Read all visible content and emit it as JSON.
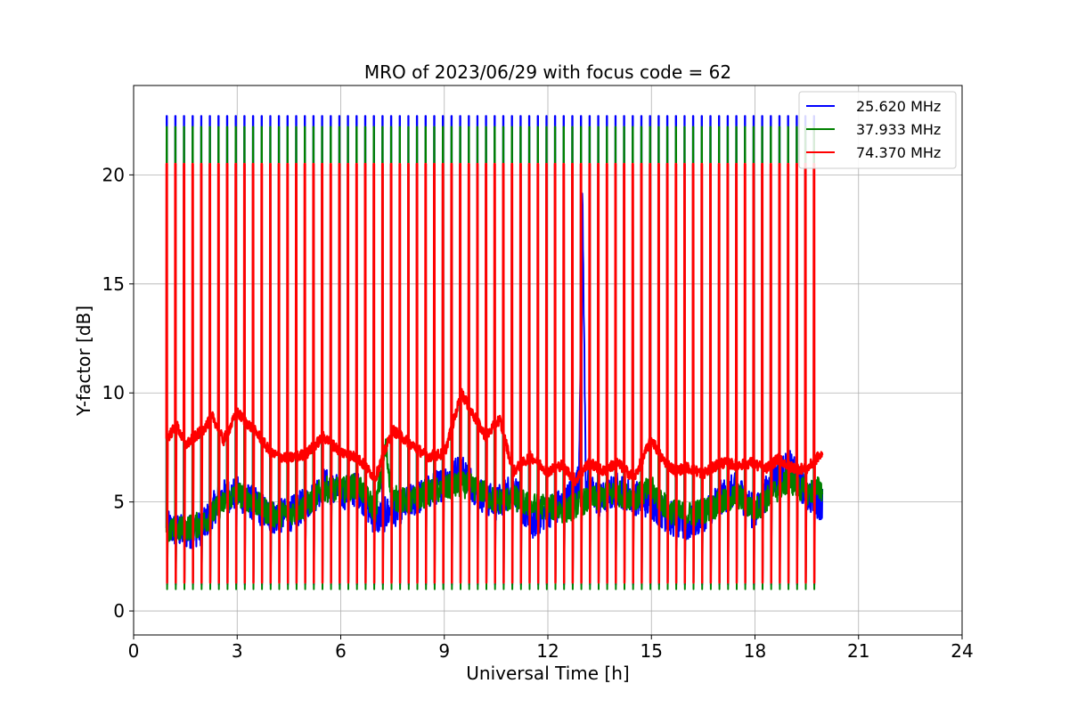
{
  "chart_data": {
    "type": "line",
    "title": "MRO of 2023/06/29 with focus code = 62",
    "xlabel": "Universal Time [h]",
    "ylabel": "Y-factor [dB]",
    "xlim": [
      0,
      24
    ],
    "ylim": [
      -1.1,
      24.1
    ],
    "xticks": [
      0,
      3,
      6,
      9,
      12,
      15,
      18,
      21,
      24
    ],
    "yticks": [
      0,
      5,
      10,
      15,
      20
    ],
    "grid": true,
    "legend_position": "top-right",
    "sweep": {
      "start_hour": 0.95,
      "end_hour": 19.85,
      "period_hours": 0.25
    },
    "series": [
      {
        "name": "25.620 MHz",
        "color": "#0000ff",
        "peak_level": 22.7,
        "low_level": 1.2,
        "baseline_x": [
          0.95,
          1.5,
          2.0,
          2.5,
          3.0,
          3.5,
          4.0,
          4.5,
          5.0,
          5.5,
          6.0,
          6.5,
          7.0,
          7.5,
          8.0,
          8.5,
          9.0,
          9.5,
          10.0,
          10.5,
          11.0,
          11.5,
          12.0,
          12.5,
          12.9,
          13.0,
          13.1,
          13.5,
          14.0,
          14.5,
          15.0,
          15.5,
          16.0,
          16.5,
          17.0,
          17.5,
          18.0,
          18.5,
          19.0,
          19.5,
          19.85
        ],
        "baseline_y": [
          3.8,
          3.6,
          3.8,
          5.2,
          5.4,
          4.9,
          4.3,
          4.4,
          4.9,
          5.8,
          5.4,
          5.6,
          4.2,
          4.6,
          5.0,
          5.4,
          5.9,
          6.5,
          5.4,
          4.9,
          5.7,
          4.0,
          4.6,
          4.9,
          6.0,
          19.0,
          6.0,
          5.0,
          5.6,
          5.2,
          5.0,
          4.3,
          3.9,
          4.4,
          5.2,
          5.6,
          4.4,
          6.0,
          6.6,
          5.4,
          5.0
        ]
      },
      {
        "name": "37.933 MHz",
        "color": "#008000",
        "peak_level": 22.2,
        "low_level": 1.0,
        "baseline_x": [
          0.95,
          1.5,
          2.0,
          2.5,
          3.0,
          3.5,
          4.0,
          4.5,
          5.0,
          5.5,
          6.0,
          6.5,
          7.0,
          7.3,
          7.5,
          8.0,
          8.5,
          9.0,
          9.5,
          10.0,
          10.5,
          11.0,
          11.5,
          12.0,
          12.5,
          13.0,
          13.5,
          14.0,
          14.5,
          15.0,
          15.5,
          16.0,
          16.5,
          17.0,
          17.5,
          18.0,
          18.5,
          19.0,
          19.5,
          19.85
        ],
        "baseline_y": [
          3.6,
          3.8,
          4.0,
          4.8,
          5.4,
          5.0,
          4.4,
          4.5,
          4.8,
          5.6,
          5.5,
          5.8,
          4.6,
          7.5,
          5.2,
          5.0,
          5.4,
          5.6,
          5.8,
          5.6,
          5.0,
          5.2,
          4.8,
          4.8,
          4.6,
          5.0,
          5.2,
          5.4,
          5.2,
          5.6,
          4.6,
          4.4,
          4.6,
          4.9,
          5.3,
          4.6,
          5.4,
          6.0,
          5.4,
          5.6
        ]
      },
      {
        "name": "74.370 MHz",
        "color": "#ff0000",
        "peak_level": 20.5,
        "low_level": 1.3,
        "baseline_x": [
          0.95,
          1.25,
          1.5,
          2.0,
          2.3,
          2.6,
          3.0,
          3.3,
          3.6,
          4.0,
          4.5,
          5.0,
          5.5,
          6.0,
          6.5,
          7.0,
          7.5,
          8.0,
          8.5,
          9.0,
          9.5,
          9.8,
          10.2,
          10.6,
          11.0,
          11.5,
          12.0,
          12.4,
          12.8,
          13.2,
          13.6,
          14.0,
          14.5,
          15.0,
          15.3,
          15.7,
          16.0,
          16.5,
          17.0,
          17.5,
          17.9,
          18.3,
          18.7,
          19.0,
          19.5,
          19.85
        ],
        "baseline_y": [
          7.9,
          8.5,
          7.6,
          8.3,
          8.9,
          7.8,
          9.1,
          8.6,
          8.1,
          7.2,
          7.0,
          7.2,
          8.0,
          7.3,
          7.0,
          6.1,
          8.3,
          7.7,
          7.1,
          7.2,
          10.0,
          9.1,
          8.0,
          8.8,
          6.4,
          7.1,
          6.4,
          6.7,
          6.0,
          6.8,
          6.4,
          6.8,
          6.1,
          7.9,
          7.0,
          6.4,
          6.6,
          6.3,
          6.8,
          6.7,
          6.8,
          6.5,
          7.0,
          6.6,
          6.5,
          7.1
        ]
      }
    ]
  }
}
